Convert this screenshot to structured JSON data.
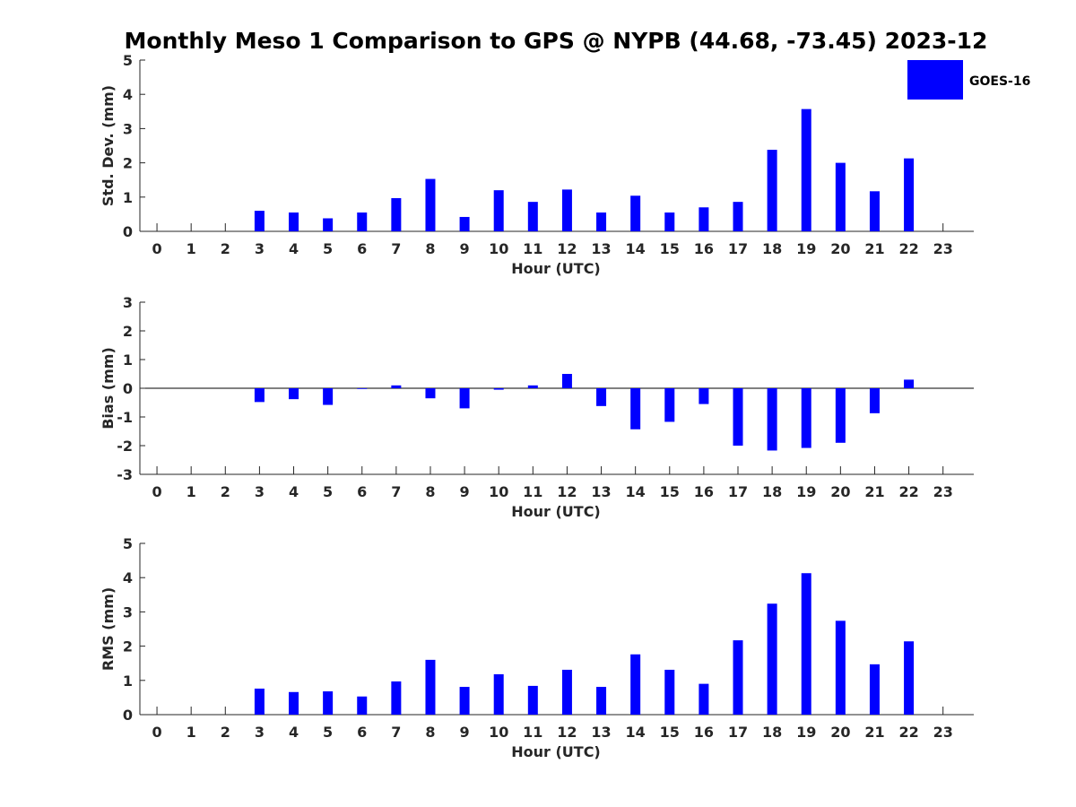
{
  "figure": {
    "title": "Monthly Meso 1 Comparison to GPS @ NYPB (44.68, -73.45) 2023-12",
    "legend": {
      "label": "GOES-16",
      "color": "#0000ff",
      "placement": "top-right"
    }
  },
  "chart_data": [
    {
      "type": "bar",
      "xlabel": "Hour (UTC)",
      "ylabel": "Std. Dev. (mm)",
      "ylim": [
        0,
        5
      ],
      "yticks": [
        0,
        1,
        2,
        3,
        4,
        5
      ],
      "categories": [
        "0",
        "1",
        "2",
        "3",
        "4",
        "5",
        "6",
        "7",
        "8",
        "9",
        "10",
        "11",
        "12",
        "13",
        "14",
        "15",
        "16",
        "17",
        "18",
        "19",
        "20",
        "21",
        "22",
        "23"
      ],
      "series": [
        {
          "name": "GOES-16",
          "values": [
            null,
            null,
            null,
            0.6,
            0.55,
            0.38,
            0.55,
            0.97,
            1.53,
            0.42,
            1.2,
            0.86,
            1.22,
            0.55,
            1.04,
            0.55,
            0.7,
            0.86,
            2.38,
            3.57,
            2.0,
            1.17,
            2.13,
            null
          ]
        }
      ]
    },
    {
      "type": "bar",
      "xlabel": "Hour (UTC)",
      "ylabel": "Bias (mm)",
      "ylim": [
        -3,
        3
      ],
      "yticks": [
        -3,
        -2,
        -1,
        0,
        1,
        2,
        3
      ],
      "categories": [
        "0",
        "1",
        "2",
        "3",
        "4",
        "5",
        "6",
        "7",
        "8",
        "9",
        "10",
        "11",
        "12",
        "13",
        "14",
        "15",
        "16",
        "17",
        "18",
        "19",
        "20",
        "21",
        "22",
        "23"
      ],
      "series": [
        {
          "name": "GOES-16",
          "values": [
            null,
            null,
            null,
            -0.48,
            -0.38,
            -0.58,
            -0.02,
            0.1,
            -0.35,
            -0.7,
            -0.05,
            0.1,
            0.5,
            -0.62,
            -1.43,
            -1.17,
            -0.55,
            -2.0,
            -2.17,
            -2.08,
            -1.9,
            -0.87,
            0.3,
            null
          ]
        }
      ]
    },
    {
      "type": "bar",
      "xlabel": "Hour (UTC)",
      "ylabel": "RMS (mm)",
      "ylim": [
        0,
        5
      ],
      "yticks": [
        0,
        1,
        2,
        3,
        4,
        5
      ],
      "categories": [
        "0",
        "1",
        "2",
        "3",
        "4",
        "5",
        "6",
        "7",
        "8",
        "9",
        "10",
        "11",
        "12",
        "13",
        "14",
        "15",
        "16",
        "17",
        "18",
        "19",
        "20",
        "21",
        "22",
        "23"
      ],
      "series": [
        {
          "name": "GOES-16",
          "values": [
            null,
            null,
            null,
            0.76,
            0.66,
            0.68,
            0.53,
            0.97,
            1.6,
            0.81,
            1.18,
            0.84,
            1.31,
            0.81,
            1.76,
            1.31,
            0.9,
            2.17,
            3.24,
            4.13,
            2.74,
            1.47,
            2.14,
            null
          ]
        }
      ]
    }
  ]
}
